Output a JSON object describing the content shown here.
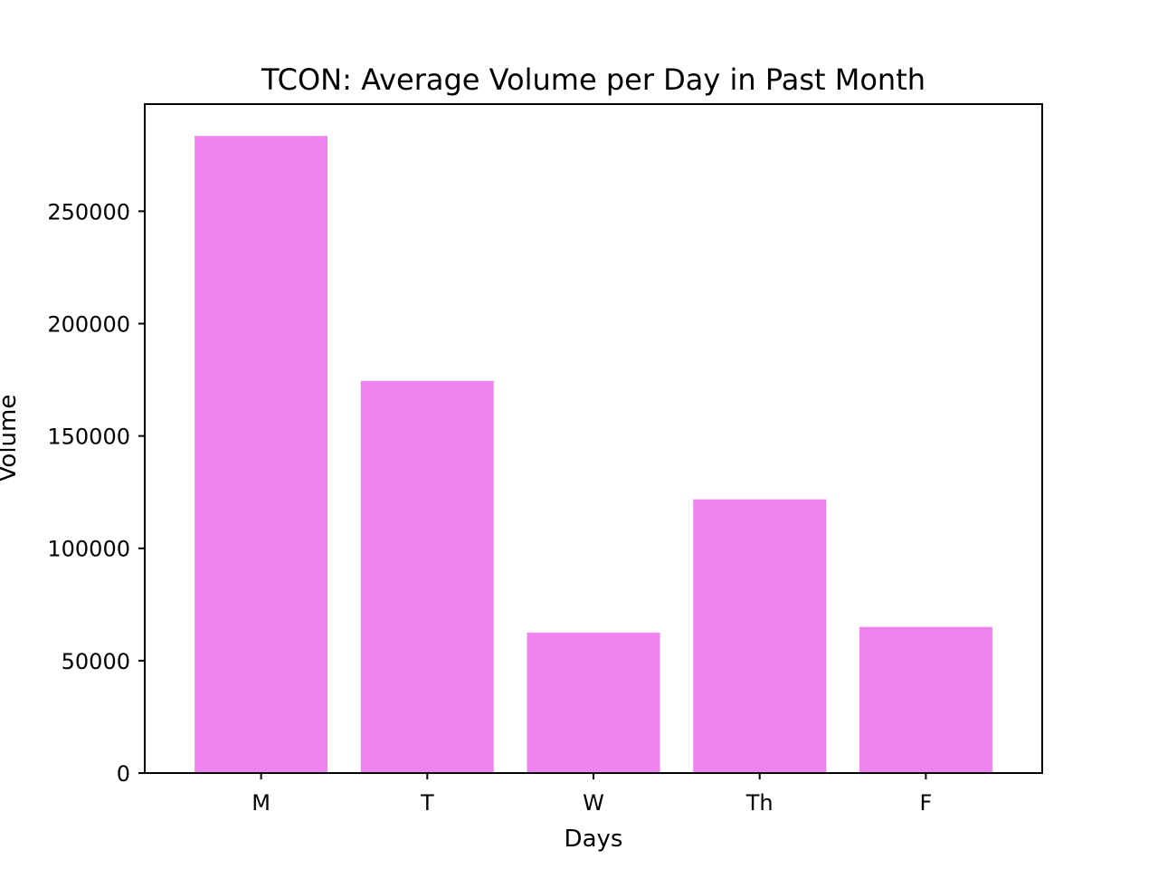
{
  "chart_data": {
    "type": "bar",
    "title": "TCON: Average Volume per Day in Past Month",
    "xlabel": "Days",
    "ylabel": "Volume",
    "categories": [
      "M",
      "T",
      "W",
      "Th",
      "F"
    ],
    "values": [
      283500,
      174500,
      62500,
      121800,
      65000
    ],
    "ylim": [
      0,
      297675
    ],
    "yticks": [
      0,
      50000,
      100000,
      150000,
      200000,
      250000
    ],
    "ytick_labels": [
      "0",
      "50000",
      "100000",
      "150000",
      "200000",
      "250000"
    ],
    "grid": false,
    "legend": "none",
    "bar_color": "#ee82ee"
  }
}
